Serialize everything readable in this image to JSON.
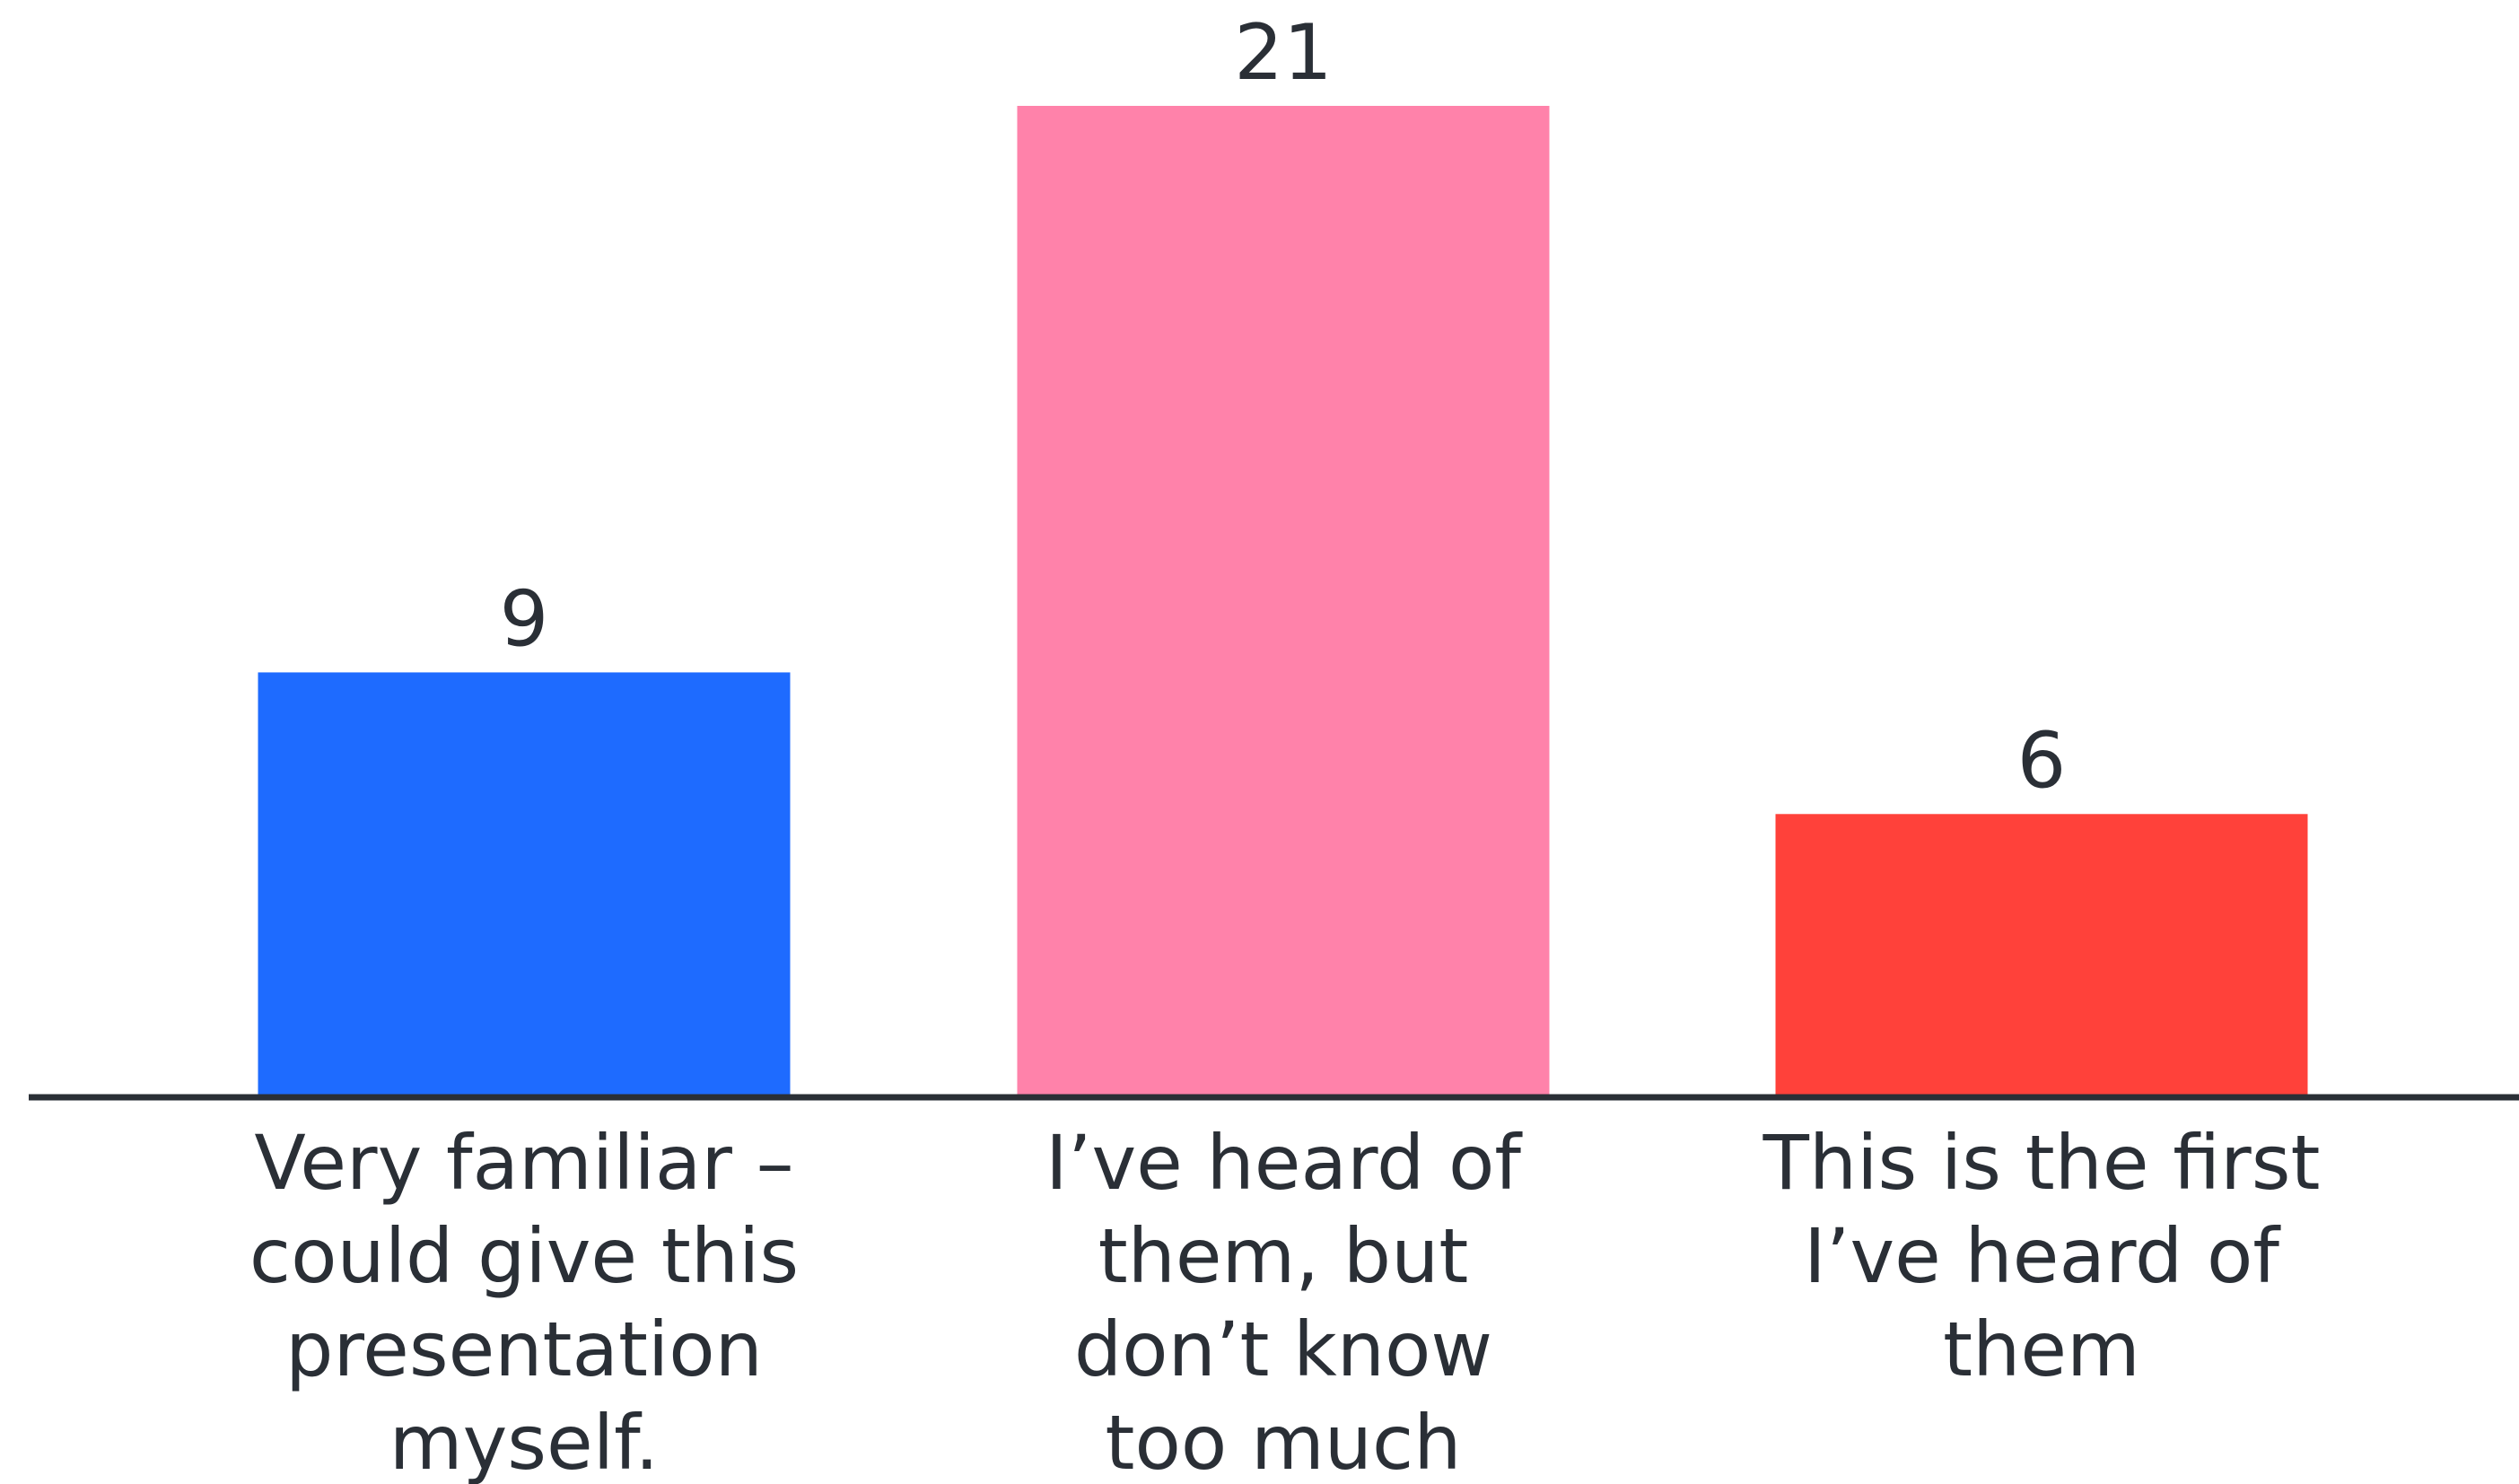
{
  "chart_data": {
    "type": "bar",
    "title": "",
    "xlabel": "",
    "ylabel": "",
    "categories": [
      [
        "Very familiar –",
        "could give this",
        "presentation",
        "myself."
      ],
      [
        "I’ve heard of",
        "them, but",
        "don’t know",
        "too much"
      ],
      [
        "This is the first",
        "I’ve heard of",
        "them"
      ]
    ],
    "values": [
      9,
      21,
      6
    ],
    "colors": [
      "#1e6bff",
      "#ff82aa",
      "#ff413a"
    ],
    "ylim": [
      0,
      21
    ],
    "grid": false,
    "legend": "none",
    "axis_color": "#2a2f36"
  }
}
